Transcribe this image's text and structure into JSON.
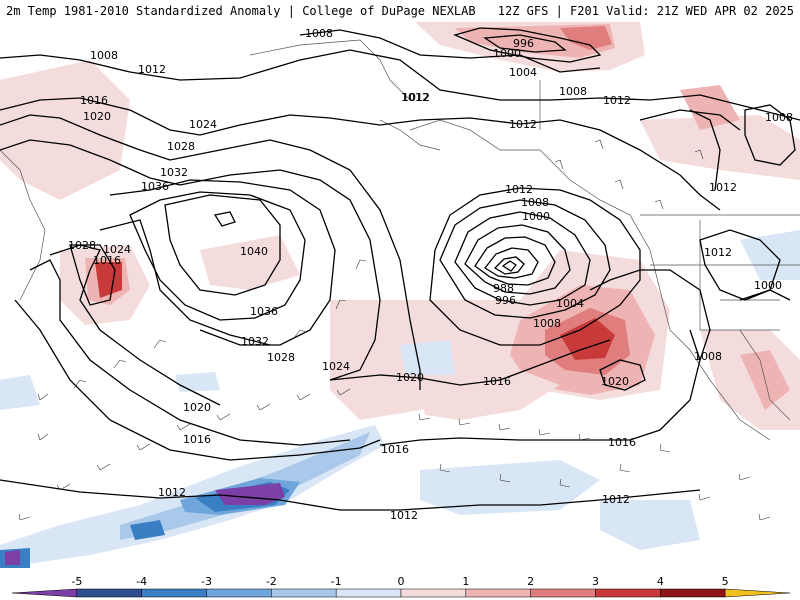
{
  "header": {
    "left": "2m Temp 1981-2010 Standardized Anomaly | College of DuPage NEXLAB",
    "right": "12Z GFS | F201 Valid: 21Z WED APR 02 2025"
  },
  "contour_labels": [
    {
      "id": "l1008a",
      "text": "1008"
    },
    {
      "id": "l1008b",
      "text": "1008"
    },
    {
      "id": "l1012a",
      "text": "1012"
    },
    {
      "id": "l1016a",
      "text": "1016"
    },
    {
      "id": "l1020a",
      "text": "1020"
    },
    {
      "id": "l1024a",
      "text": "1024"
    },
    {
      "id": "l1028a",
      "text": "1028"
    },
    {
      "id": "l1032a",
      "text": "1032"
    },
    {
      "id": "l1036a",
      "text": "1036"
    },
    {
      "id": "l1040",
      "text": "1040"
    },
    {
      "id": "l1036b",
      "text": "1036"
    },
    {
      "id": "l1032b",
      "text": "1032"
    },
    {
      "id": "l1028b",
      "text": "1028"
    },
    {
      "id": "l1024b",
      "text": "1024"
    },
    {
      "id": "l1020b",
      "text": "1020"
    },
    {
      "id": "l1016b",
      "text": "1016"
    },
    {
      "id": "l1012b",
      "text": "1012"
    },
    {
      "id": "l1028c",
      "text": "1028"
    },
    {
      "id": "l1024c",
      "text": "1024"
    },
    {
      "id": "l1016c",
      "text": "1016"
    },
    {
      "id": "l1016d",
      "text": "1016"
    },
    {
      "id": "l1020c",
      "text": "1020"
    },
    {
      "id": "l1012c",
      "text": "1012"
    },
    {
      "id": "l996a",
      "text": "996"
    },
    {
      "id": "l1000a",
      "text": "1000"
    },
    {
      "id": "l1004a",
      "text": "1004"
    },
    {
      "id": "l1008c",
      "text": "1008"
    },
    {
      "id": "l1012d",
      "text": "1012"
    },
    {
      "id": "l1012e",
      "text": "1012"
    },
    {
      "id": "l1008d",
      "text": "1008"
    },
    {
      "id": "l1000b",
      "text": "1000"
    },
    {
      "id": "l988",
      "text": "988"
    },
    {
      "id": "l996b",
      "text": "996"
    },
    {
      "id": "l1004b",
      "text": "1004"
    },
    {
      "id": "l1008e",
      "text": "1008"
    },
    {
      "id": "l1016e",
      "text": "1016"
    },
    {
      "id": "l1020d",
      "text": "1020"
    },
    {
      "id": "l1016f",
      "text": "1016"
    },
    {
      "id": "l1012f",
      "text": "1012"
    },
    {
      "id": "l1012g",
      "text": "1012"
    },
    {
      "id": "l1008f",
      "text": "1008"
    },
    {
      "id": "l1012h",
      "text": "1012"
    },
    {
      "id": "l1012i",
      "text": "1012"
    },
    {
      "id": "l1008g",
      "text": "1008"
    },
    {
      "id": "l1000c",
      "text": "1000"
    },
    {
      "id": "l1012j",
      "text": "1012"
    },
    {
      "id": "l1012k",
      "text": "1012"
    }
  ],
  "colorbar": {
    "ticks": [
      "-5",
      "-4",
      "-3",
      "-2",
      "-1",
      "0",
      "1",
      "2",
      "3",
      "4",
      "5"
    ],
    "colors": [
      "#7b3fa6",
      "#2f4f8f",
      "#3a7fc4",
      "#6ea6dc",
      "#a9c8ea",
      "#d8e6f5",
      "#f5dcdc",
      "#eeb3b3",
      "#e07e7e",
      "#c83a3a",
      "#8e1418",
      "#f0c020"
    ]
  }
}
